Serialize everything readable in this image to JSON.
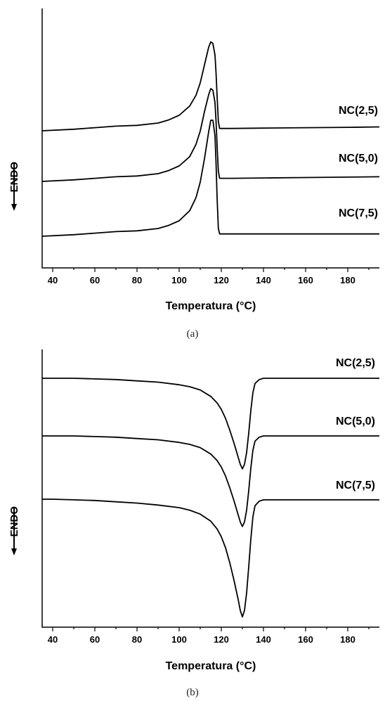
{
  "chart_data": [
    {
      "type": "line",
      "panel": "(a)",
      "xlabel": "Temperatura (°C)",
      "ylabel": "ENDO",
      "xlim": [
        35,
        195
      ],
      "xticks": [
        40,
        60,
        80,
        100,
        120,
        140,
        160,
        180
      ],
      "series": [
        {
          "name": "NC(2,5)",
          "x": [
            35,
            50,
            60,
            70,
            80,
            90,
            95,
            100,
            105,
            108,
            110,
            112,
            114,
            115,
            116,
            117,
            117.5,
            118,
            118.6,
            119.2,
            125,
            140,
            160,
            180,
            195
          ],
          "y": [
            0.0,
            0.02,
            0.04,
            0.06,
            0.07,
            0.1,
            0.14,
            0.2,
            0.32,
            0.46,
            0.62,
            0.85,
            1.08,
            1.15,
            1.13,
            0.98,
            0.75,
            0.45,
            0.12,
            0.03,
            0.03,
            0.035,
            0.04,
            0.045,
            0.05
          ]
        },
        {
          "name": "NC(5,0)",
          "x": [
            35,
            50,
            60,
            70,
            80,
            90,
            95,
            100,
            105,
            108,
            110,
            112,
            114,
            115,
            116,
            117,
            117.5,
            118,
            118.6,
            119.2,
            125,
            140,
            160,
            180,
            195
          ],
          "y": [
            0.0,
            0.02,
            0.04,
            0.06,
            0.07,
            0.1,
            0.14,
            0.2,
            0.32,
            0.48,
            0.65,
            0.9,
            1.12,
            1.2,
            1.18,
            1.02,
            0.78,
            0.46,
            0.13,
            0.04,
            0.04,
            0.045,
            0.05,
            0.055,
            0.06
          ]
        },
        {
          "name": "NC(7,5)",
          "x": [
            35,
            50,
            60,
            70,
            80,
            90,
            95,
            100,
            105,
            108,
            110,
            112,
            114,
            115,
            116,
            117,
            117.5,
            118,
            118.6,
            119.2,
            125,
            140,
            160,
            180,
            195
          ],
          "y": [
            0.0,
            0.02,
            0.04,
            0.06,
            0.07,
            0.1,
            0.14,
            0.2,
            0.33,
            0.5,
            0.7,
            1.0,
            1.35,
            1.5,
            1.5,
            1.3,
            0.95,
            0.5,
            0.1,
            0.03,
            0.03,
            0.03,
            0.03,
            0.03,
            0.03
          ]
        }
      ],
      "offsets": [
        1.0,
        0.6,
        0.0
      ]
    },
    {
      "type": "line",
      "panel": "(b)",
      "xlabel": "Temperatura (°C)",
      "ylabel": "ENDO",
      "xlim": [
        35,
        195
      ],
      "xticks": [
        40,
        60,
        80,
        100,
        120,
        140,
        160,
        180
      ],
      "series": [
        {
          "name": "NC(2,5)",
          "x": [
            35,
            40,
            50,
            60,
            70,
            80,
            90,
            100,
            105,
            110,
            115,
            118,
            120,
            122,
            124,
            126,
            128,
            129,
            130,
            131,
            132,
            133,
            134,
            135,
            136,
            138,
            140,
            150,
            160,
            180,
            195
          ],
          "y": [
            0.0,
            0.0,
            0.0,
            -0.01,
            -0.02,
            -0.04,
            -0.06,
            -0.1,
            -0.13,
            -0.18,
            -0.28,
            -0.38,
            -0.48,
            -0.62,
            -0.8,
            -1.0,
            -1.22,
            -1.33,
            -1.4,
            -1.33,
            -1.15,
            -0.85,
            -0.5,
            -0.22,
            -0.08,
            -0.02,
            0.0,
            0.0,
            0.0,
            0.0,
            0.0
          ]
        },
        {
          "name": "NC(5,0)",
          "x": [
            35,
            40,
            50,
            60,
            70,
            80,
            90,
            100,
            105,
            110,
            115,
            118,
            120,
            122,
            124,
            126,
            128,
            129,
            130,
            131,
            132,
            133,
            134,
            135,
            136,
            138,
            140,
            150,
            160,
            180,
            195
          ],
          "y": [
            0.0,
            0.0,
            0.0,
            -0.01,
            -0.02,
            -0.04,
            -0.06,
            -0.1,
            -0.13,
            -0.18,
            -0.28,
            -0.38,
            -0.48,
            -0.62,
            -0.8,
            -1.0,
            -1.22,
            -1.33,
            -1.4,
            -1.33,
            -1.15,
            -0.85,
            -0.5,
            -0.22,
            -0.08,
            -0.02,
            0.0,
            0.0,
            0.0,
            0.0,
            0.0
          ]
        },
        {
          "name": "NC(7,5)",
          "x": [
            35,
            40,
            50,
            60,
            70,
            80,
            90,
            100,
            105,
            110,
            115,
            118,
            120,
            122,
            124,
            126,
            128,
            129,
            130,
            131,
            132,
            133,
            134,
            135,
            136,
            138,
            140,
            150,
            160,
            180,
            195
          ],
          "y": [
            0.0,
            0.0,
            -0.01,
            -0.02,
            -0.04,
            -0.06,
            -0.09,
            -0.13,
            -0.17,
            -0.23,
            -0.34,
            -0.46,
            -0.58,
            -0.75,
            -0.98,
            -1.25,
            -1.55,
            -1.72,
            -1.82,
            -1.72,
            -1.45,
            -1.05,
            -0.62,
            -0.27,
            -0.1,
            -0.03,
            -0.01,
            -0.01,
            -0.01,
            -0.01,
            -0.01
          ]
        }
      ],
      "offsets": [
        2.1,
        1.2,
        0.3
      ]
    }
  ],
  "captions": {
    "a": "(a)",
    "b": "(b)"
  }
}
